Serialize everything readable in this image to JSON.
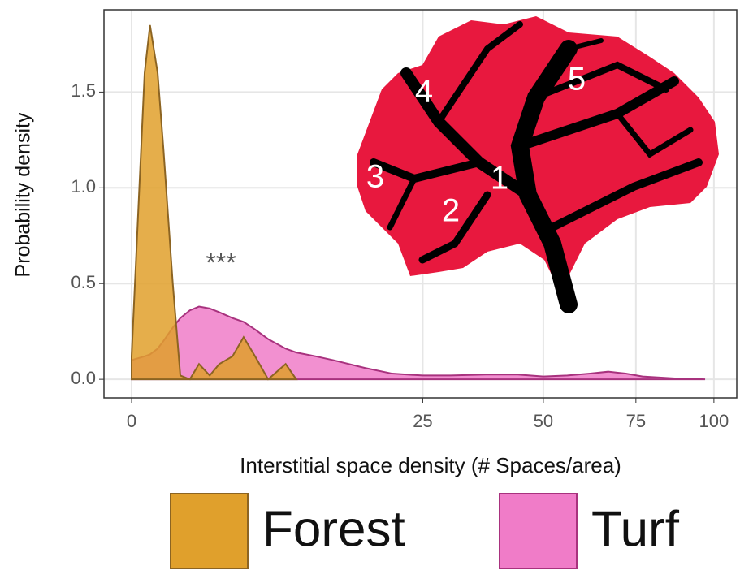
{
  "chart_data": {
    "type": "area",
    "x_label": "Interstitial space density (# Spaces/area)",
    "y_label": "Probability density",
    "annotation": "***",
    "inset_labels": [
      "1",
      "2",
      "3",
      "4",
      "5"
    ],
    "x_scale": "sqrt",
    "x": [
      0,
      0.05,
      0.1,
      0.2,
      0.3,
      0.5,
      0.7,
      1,
      1.34,
      1.8,
      2.27,
      3,
      3.7,
      4.5,
      5.5,
      7,
      8,
      10,
      12,
      16,
      20,
      25,
      30,
      37,
      44,
      50,
      56,
      62,
      67,
      72,
      77,
      87,
      97
    ],
    "series": [
      {
        "name": "Turf",
        "color": "#f07cc8",
        "edge": "#a8327e",
        "values": [
          0.1,
          0.12,
          0.13,
          0.16,
          0.2,
          0.27,
          0.32,
          0.36,
          0.38,
          0.37,
          0.35,
          0.32,
          0.3,
          0.26,
          0.21,
          0.16,
          0.14,
          0.12,
          0.1,
          0.06,
          0.03,
          0.02,
          0.02,
          0.025,
          0.025,
          0.015,
          0.02,
          0.03,
          0.04,
          0.03,
          0.015,
          0.005,
          0
        ]
      },
      {
        "name": "Forest",
        "color": "#e0a02c",
        "edge": "#8c6422",
        "values": [
          0.12,
          1.6,
          1.85,
          1.6,
          1.2,
          0.5,
          0.02,
          0,
          0.08,
          0.02,
          0.08,
          0.12,
          0.22,
          0.12,
          0,
          0.08,
          0,
          null,
          null,
          null,
          null,
          null,
          null,
          null,
          null,
          null,
          null,
          null,
          null,
          null,
          null,
          null,
          null
        ]
      }
    ],
    "xlim": [
      0,
      108
    ],
    "xticks": [
      0,
      25,
      50,
      75,
      100
    ],
    "ylim": [
      -0.097,
      1.93
    ],
    "yticks": [
      {
        "value": 0,
        "label": "0.0"
      },
      {
        "value": 0.5,
        "label": "0.5"
      },
      {
        "value": 1,
        "label": "1.0"
      },
      {
        "value": 1.5,
        "label": "1.5"
      }
    ],
    "grid": true
  }
}
